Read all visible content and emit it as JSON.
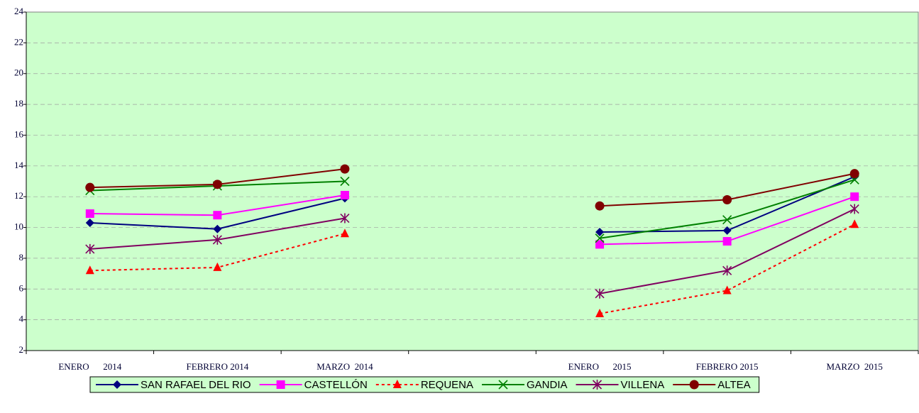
{
  "chart_data": {
    "type": "line",
    "categories": [
      "ENERO      2014",
      "FEBRERO 2014",
      "MARZO  2014",
      null,
      "ENERO      2015",
      "FEBRERO 2015",
      "MARZO  2015"
    ],
    "series": [
      {
        "name": "SAN RAFAEL DEL RIO",
        "color": "#000080",
        "marker": "diamond",
        "values": [
          10.3,
          9.9,
          11.9,
          null,
          9.7,
          9.8,
          13.3
        ]
      },
      {
        "name": "CASTELLÓN",
        "color": "#ff00ff",
        "marker": "square",
        "values": [
          10.9,
          10.8,
          12.1,
          null,
          8.9,
          9.1,
          12.0
        ]
      },
      {
        "name": "REQUENA",
        "color": "#ff0000",
        "marker": "triangle",
        "dash": true,
        "values": [
          7.2,
          7.4,
          9.6,
          null,
          4.4,
          5.9,
          10.2
        ]
      },
      {
        "name": "GANDIA",
        "color": "#008000",
        "marker": "x",
        "values": [
          12.4,
          12.7,
          13.0,
          null,
          9.3,
          10.5,
          13.1
        ]
      },
      {
        "name": "VILLENA",
        "color": "#800060",
        "marker": "star",
        "values": [
          8.6,
          9.2,
          10.6,
          null,
          5.7,
          7.2,
          11.2
        ]
      },
      {
        "name": "ALTEA",
        "color": "#800000",
        "marker": "circle",
        "values": [
          12.6,
          12.8,
          13.8,
          null,
          11.4,
          11.8,
          13.5
        ]
      }
    ],
    "ylim": [
      2,
      24
    ],
    "yticks": [
      2,
      4,
      6,
      8,
      10,
      12,
      14,
      16,
      18,
      20,
      22,
      24
    ],
    "grid": true,
    "legend": "bottom"
  }
}
